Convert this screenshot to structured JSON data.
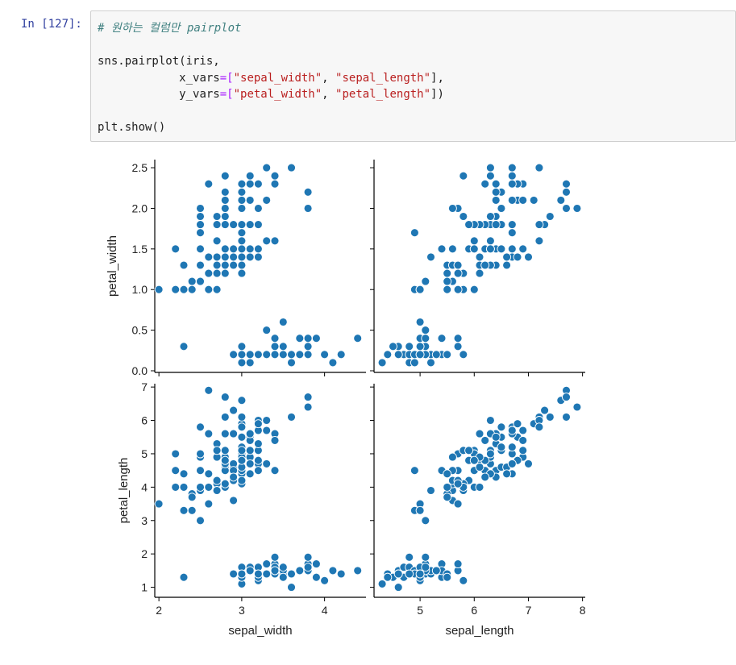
{
  "cell": {
    "prompt": "In [127]:",
    "comment": "# 원하는 컬럼만 pairplot",
    "line2_a": "sns.pairplot(iris,",
    "x_kw": "x_vars",
    "x_eq": "=[",
    "x_s1": "\"sepal_width\"",
    "x_sep": ", ",
    "x_s2": "\"sepal_length\"",
    "x_end": "],",
    "y_kw": "y_vars",
    "y_eq": "=[",
    "y_s1": "\"petal_width\"",
    "y_sep": ", ",
    "y_s2": "\"petal_length\"",
    "y_end": "])",
    "last_line": "plt.show()"
  },
  "colors": {
    "point": "#1f77b4",
    "point_edge": "#ffffff",
    "axis": "#000000",
    "prompt": "#303f9f",
    "string": "#ba2121",
    "operator": "#aa22ff",
    "comment": "#408080"
  },
  "chart_data": {
    "type": "scatter",
    "x_vars": [
      "sepal_width",
      "sepal_length"
    ],
    "y_vars": [
      "petal_width",
      "petal_length"
    ],
    "xlabels": [
      "sepal_width",
      "sepal_length"
    ],
    "ylabels": [
      "petal_width",
      "petal_length"
    ],
    "axes": {
      "sepal_width": {
        "lim": [
          1.95,
          4.5
        ],
        "ticks": [
          2,
          3,
          4
        ],
        "tick_labels": [
          "2",
          "3",
          "4"
        ]
      },
      "sepal_length": {
        "lim": [
          4.15,
          8.05
        ],
        "ticks": [
          5,
          6,
          7,
          8
        ],
        "tick_labels": [
          "5",
          "6",
          "7",
          "8"
        ]
      },
      "petal_width": {
        "lim": [
          -0.02,
          2.6
        ],
        "ticks": [
          0.0,
          0.5,
          1.0,
          1.5,
          2.0,
          2.5
        ],
        "tick_labels": [
          "0.0",
          "0.5",
          "1.0",
          "1.5",
          "2.0",
          "2.5"
        ]
      },
      "petal_length": {
        "lim": [
          0.7,
          7.1
        ],
        "ticks": [
          1,
          2,
          3,
          4,
          5,
          6,
          7
        ],
        "tick_labels": [
          "1",
          "2",
          "3",
          "4",
          "5",
          "6",
          "7"
        ]
      }
    },
    "columns": [
      "sepal_length",
      "sepal_width",
      "petal_length",
      "petal_width"
    ],
    "rows": [
      [
        5.1,
        3.5,
        1.4,
        0.2
      ],
      [
        4.9,
        3.0,
        1.4,
        0.2
      ],
      [
        4.7,
        3.2,
        1.3,
        0.2
      ],
      [
        4.6,
        3.1,
        1.5,
        0.2
      ],
      [
        5.0,
        3.6,
        1.4,
        0.2
      ],
      [
        5.4,
        3.9,
        1.7,
        0.4
      ],
      [
        4.6,
        3.4,
        1.4,
        0.3
      ],
      [
        5.0,
        3.4,
        1.5,
        0.2
      ],
      [
        4.4,
        2.9,
        1.4,
        0.2
      ],
      [
        4.9,
        3.1,
        1.5,
        0.1
      ],
      [
        5.4,
        3.7,
        1.5,
        0.2
      ],
      [
        4.8,
        3.4,
        1.6,
        0.2
      ],
      [
        4.8,
        3.0,
        1.4,
        0.1
      ],
      [
        4.3,
        3.0,
        1.1,
        0.1
      ],
      [
        5.8,
        4.0,
        1.2,
        0.2
      ],
      [
        5.7,
        4.4,
        1.5,
        0.4
      ],
      [
        5.4,
        3.9,
        1.3,
        0.4
      ],
      [
        5.1,
        3.5,
        1.4,
        0.3
      ],
      [
        5.7,
        3.8,
        1.7,
        0.3
      ],
      [
        5.1,
        3.8,
        1.5,
        0.3
      ],
      [
        5.4,
        3.4,
        1.7,
        0.2
      ],
      [
        5.1,
        3.7,
        1.5,
        0.4
      ],
      [
        4.6,
        3.6,
        1.0,
        0.2
      ],
      [
        5.1,
        3.3,
        1.7,
        0.5
      ],
      [
        4.8,
        3.4,
        1.9,
        0.2
      ],
      [
        5.0,
        3.0,
        1.6,
        0.2
      ],
      [
        5.0,
        3.4,
        1.6,
        0.4
      ],
      [
        5.2,
        3.5,
        1.5,
        0.2
      ],
      [
        5.2,
        3.4,
        1.4,
        0.2
      ],
      [
        4.7,
        3.2,
        1.6,
        0.2
      ],
      [
        4.8,
        3.1,
        1.6,
        0.2
      ],
      [
        5.4,
        3.4,
        1.5,
        0.4
      ],
      [
        5.2,
        4.1,
        1.5,
        0.1
      ],
      [
        5.5,
        4.2,
        1.4,
        0.2
      ],
      [
        4.9,
        3.1,
        1.5,
        0.2
      ],
      [
        5.0,
        3.2,
        1.2,
        0.2
      ],
      [
        5.5,
        3.5,
        1.3,
        0.2
      ],
      [
        4.9,
        3.6,
        1.4,
        0.1
      ],
      [
        4.4,
        3.0,
        1.3,
        0.2
      ],
      [
        5.1,
        3.4,
        1.5,
        0.2
      ],
      [
        5.0,
        3.5,
        1.3,
        0.3
      ],
      [
        4.5,
        2.3,
        1.3,
        0.3
      ],
      [
        4.4,
        3.2,
        1.3,
        0.2
      ],
      [
        5.0,
        3.5,
        1.6,
        0.6
      ],
      [
        5.1,
        3.8,
        1.9,
        0.4
      ],
      [
        4.8,
        3.0,
        1.4,
        0.3
      ],
      [
        5.1,
        3.8,
        1.6,
        0.2
      ],
      [
        4.6,
        3.2,
        1.4,
        0.2
      ],
      [
        5.3,
        3.7,
        1.5,
        0.2
      ],
      [
        5.0,
        3.3,
        1.4,
        0.2
      ],
      [
        7.0,
        3.2,
        4.7,
        1.4
      ],
      [
        6.4,
        3.2,
        4.5,
        1.5
      ],
      [
        6.9,
        3.1,
        4.9,
        1.5
      ],
      [
        5.5,
        2.3,
        4.0,
        1.3
      ],
      [
        6.5,
        2.8,
        4.6,
        1.5
      ],
      [
        5.7,
        2.8,
        4.5,
        1.3
      ],
      [
        6.3,
        3.3,
        4.7,
        1.6
      ],
      [
        4.9,
        2.4,
        3.3,
        1.0
      ],
      [
        6.6,
        2.9,
        4.6,
        1.3
      ],
      [
        5.2,
        2.7,
        3.9,
        1.4
      ],
      [
        5.0,
        2.0,
        3.5,
        1.0
      ],
      [
        5.9,
        3.0,
        4.2,
        1.5
      ],
      [
        6.0,
        2.2,
        4.0,
        1.0
      ],
      [
        6.1,
        2.9,
        4.7,
        1.4
      ],
      [
        5.6,
        2.9,
        3.6,
        1.3
      ],
      [
        6.7,
        3.1,
        4.4,
        1.4
      ],
      [
        5.6,
        3.0,
        4.5,
        1.5
      ],
      [
        5.8,
        2.7,
        4.1,
        1.0
      ],
      [
        6.2,
        2.2,
        4.5,
        1.5
      ],
      [
        5.6,
        2.5,
        3.9,
        1.1
      ],
      [
        5.9,
        3.2,
        4.8,
        1.8
      ],
      [
        6.1,
        2.8,
        4.0,
        1.3
      ],
      [
        6.3,
        2.5,
        4.9,
        1.5
      ],
      [
        6.1,
        2.8,
        4.7,
        1.2
      ],
      [
        6.4,
        2.9,
        4.3,
        1.3
      ],
      [
        6.6,
        3.0,
        4.4,
        1.4
      ],
      [
        6.8,
        2.8,
        4.8,
        1.4
      ],
      [
        6.7,
        3.0,
        5.0,
        1.7
      ],
      [
        6.0,
        2.9,
        4.5,
        1.5
      ],
      [
        5.7,
        2.6,
        3.5,
        1.0
      ],
      [
        5.5,
        2.4,
        3.8,
        1.1
      ],
      [
        5.5,
        2.4,
        3.7,
        1.0
      ],
      [
        5.8,
        2.7,
        3.9,
        1.2
      ],
      [
        6.0,
        2.7,
        5.1,
        1.6
      ],
      [
        5.4,
        3.0,
        4.5,
        1.5
      ],
      [
        6.0,
        3.4,
        4.5,
        1.6
      ],
      [
        6.7,
        3.1,
        4.7,
        1.5
      ],
      [
        6.3,
        2.3,
        4.4,
        1.3
      ],
      [
        5.6,
        3.0,
        4.1,
        1.3
      ],
      [
        5.5,
        2.5,
        4.0,
        1.3
      ],
      [
        5.5,
        2.6,
        4.4,
        1.2
      ],
      [
        6.1,
        3.0,
        4.6,
        1.4
      ],
      [
        5.8,
        2.6,
        4.0,
        1.2
      ],
      [
        5.0,
        2.3,
        3.3,
        1.0
      ],
      [
        5.6,
        2.7,
        4.2,
        1.3
      ],
      [
        5.7,
        3.0,
        4.2,
        1.2
      ],
      [
        5.7,
        2.9,
        4.2,
        1.3
      ],
      [
        6.2,
        2.9,
        4.3,
        1.3
      ],
      [
        5.1,
        2.5,
        3.0,
        1.1
      ],
      [
        5.7,
        2.8,
        4.1,
        1.3
      ],
      [
        6.3,
        3.3,
        6.0,
        2.5
      ],
      [
        5.8,
        2.7,
        5.1,
        1.9
      ],
      [
        7.1,
        3.0,
        5.9,
        2.1
      ],
      [
        6.3,
        2.9,
        5.6,
        1.8
      ],
      [
        6.5,
        3.0,
        5.8,
        2.2
      ],
      [
        7.6,
        3.0,
        6.6,
        2.1
      ],
      [
        4.9,
        2.5,
        4.5,
        1.7
      ],
      [
        7.3,
        2.9,
        6.3,
        1.8
      ],
      [
        6.7,
        2.5,
        5.8,
        1.8
      ],
      [
        7.2,
        3.6,
        6.1,
        2.5
      ],
      [
        6.5,
        3.2,
        5.1,
        2.0
      ],
      [
        6.4,
        2.7,
        5.3,
        1.9
      ],
      [
        6.8,
        3.0,
        5.5,
        2.1
      ],
      [
        5.7,
        2.5,
        5.0,
        2.0
      ],
      [
        5.8,
        2.8,
        5.1,
        2.4
      ],
      [
        6.4,
        3.2,
        5.3,
        2.3
      ],
      [
        6.5,
        3.0,
        5.5,
        1.8
      ],
      [
        7.7,
        3.8,
        6.7,
        2.2
      ],
      [
        7.7,
        2.6,
        6.9,
        2.3
      ],
      [
        6.0,
        2.2,
        5.0,
        1.5
      ],
      [
        6.9,
        3.2,
        5.7,
        2.3
      ],
      [
        5.6,
        2.8,
        4.9,
        2.0
      ],
      [
        7.7,
        2.8,
        6.7,
        2.0
      ],
      [
        6.3,
        2.7,
        4.9,
        1.8
      ],
      [
        6.7,
        3.3,
        5.7,
        2.1
      ],
      [
        7.2,
        3.2,
        6.0,
        1.8
      ],
      [
        6.2,
        2.8,
        4.8,
        1.8
      ],
      [
        6.1,
        3.0,
        4.9,
        1.8
      ],
      [
        6.4,
        2.8,
        5.6,
        2.1
      ],
      [
        7.2,
        3.0,
        5.8,
        1.6
      ],
      [
        7.4,
        2.8,
        6.1,
        1.9
      ],
      [
        7.9,
        3.8,
        6.4,
        2.0
      ],
      [
        6.4,
        2.8,
        5.6,
        2.2
      ],
      [
        6.3,
        2.8,
        5.1,
        1.5
      ],
      [
        6.1,
        2.6,
        5.6,
        1.4
      ],
      [
        7.7,
        3.0,
        6.1,
        2.3
      ],
      [
        6.3,
        3.4,
        5.6,
        2.4
      ],
      [
        6.4,
        3.1,
        5.5,
        1.8
      ],
      [
        6.0,
        3.0,
        4.8,
        1.8
      ],
      [
        6.9,
        3.1,
        5.4,
        2.1
      ],
      [
        6.7,
        3.1,
        5.6,
        2.4
      ],
      [
        6.9,
        3.1,
        5.1,
        2.3
      ],
      [
        5.8,
        2.7,
        5.1,
        1.9
      ],
      [
        6.8,
        3.2,
        5.9,
        2.3
      ],
      [
        6.7,
        3.3,
        5.7,
        2.5
      ],
      [
        6.7,
        3.0,
        5.2,
        2.3
      ],
      [
        6.3,
        2.5,
        5.0,
        1.9
      ],
      [
        6.5,
        3.0,
        5.2,
        2.0
      ],
      [
        6.2,
        3.4,
        5.4,
        2.3
      ],
      [
        5.9,
        3.0,
        5.1,
        1.8
      ]
    ]
  }
}
